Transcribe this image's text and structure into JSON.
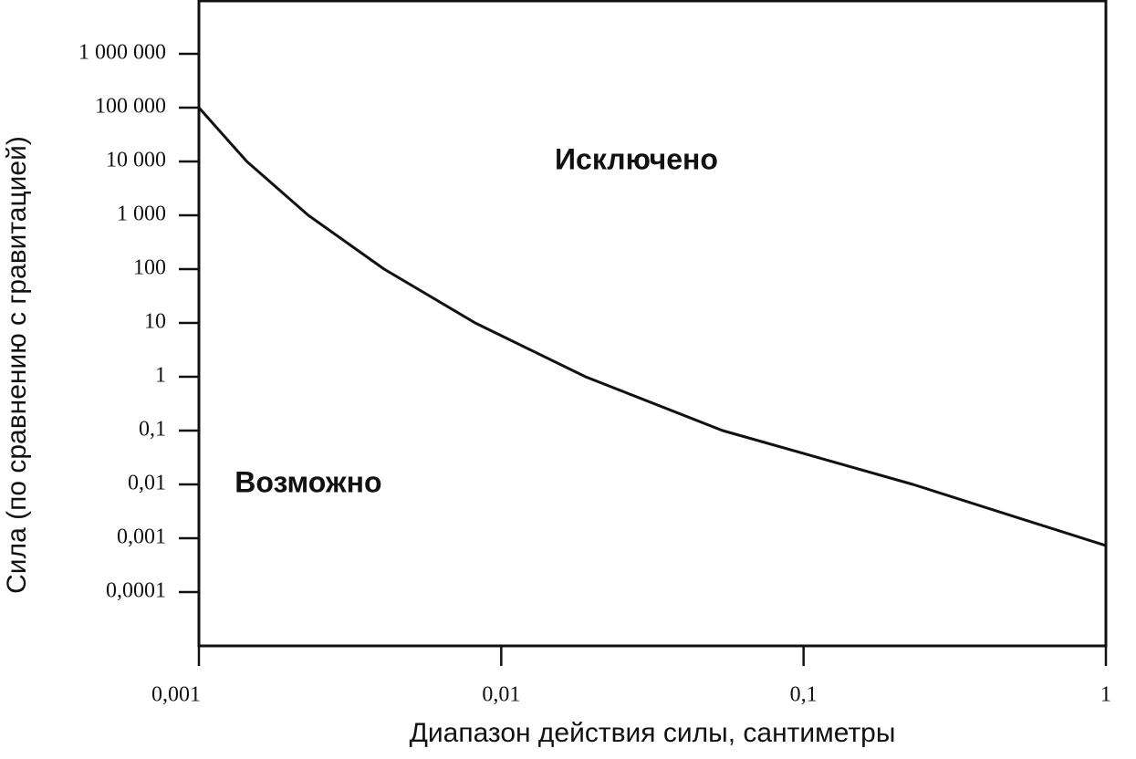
{
  "chart_data": {
    "type": "line",
    "xlabel": "Диапазон действия силы, сантиметры",
    "ylabel": "Сила (по сравнению с гравитацией)",
    "log_x": true,
    "log_y": true,
    "color": "#111111",
    "xlim": [
      0.001,
      1
    ],
    "ylim": [
      1e-05,
      10000000
    ],
    "xticks": [
      {
        "value": 0.001,
        "label": "0,001"
      },
      {
        "value": 0.01,
        "label": "0,01"
      },
      {
        "value": 0.1,
        "label": "0,1"
      },
      1
    ],
    "yticks": [
      {
        "value": 0.0001,
        "label": "0,0001"
      },
      {
        "value": 0.001,
        "label": "0,001"
      },
      {
        "value": 0.01,
        "label": "0,01"
      },
      {
        "value": 0.1,
        "label": "0,1"
      },
      1,
      10,
      100,
      {
        "value": 1000,
        "label": "1 000"
      },
      {
        "value": 10000,
        "label": "10 000"
      },
      {
        "value": 100000,
        "label": "100 000"
      },
      {
        "value": 1000000,
        "label": "1 000 000"
      }
    ],
    "x": [
      0.001,
      0.00144,
      0.0023,
      0.0041,
      0.0082,
      0.019,
      0.054,
      0.23,
      1
    ],
    "values": [
      100000,
      10000,
      1000,
      100,
      10,
      1,
      0.1,
      0.01,
      0.00073
    ],
    "annotations": [
      {
        "text": "Исключено",
        "x": 0.028,
        "y": 10000
      },
      {
        "text": "Возможно",
        "x": 0.0023,
        "y": 0.01
      }
    ]
  }
}
